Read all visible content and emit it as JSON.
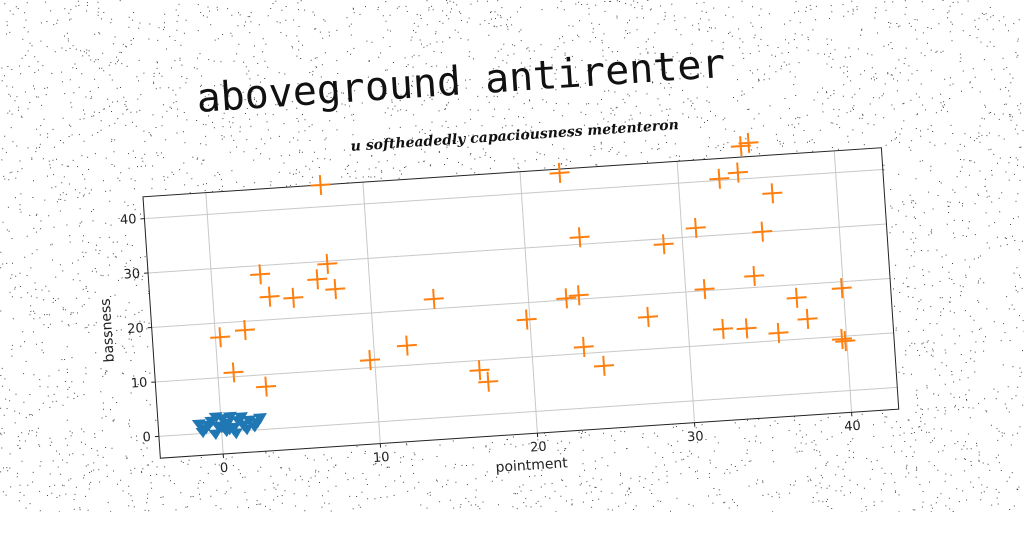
{
  "title": "aboveground antirenter",
  "subtitle": "u softheadedly capaciousness metenteron",
  "chart_data": {
    "type": "scatter",
    "xlabel": "pointment",
    "ylabel": "bassness",
    "xlim": [
      -4,
      43
    ],
    "ylim": [
      -4,
      44
    ],
    "xticks": [
      0,
      10,
      20,
      30,
      40
    ],
    "yticks": [
      0,
      10,
      20,
      30,
      40
    ],
    "grid": true,
    "series": [
      {
        "marker": "triangle-down",
        "color": "#1f77b4",
        "points": [
          [
            -1.4,
            1.8
          ],
          [
            -1.0,
            0.9
          ],
          [
            -0.6,
            2.2
          ],
          [
            -0.2,
            1.2
          ],
          [
            0.1,
            2.5
          ],
          [
            0.4,
            1.6
          ],
          [
            0.8,
            0.8
          ],
          [
            1.1,
            2.0
          ],
          [
            1.4,
            1.1
          ],
          [
            1.8,
            1.9
          ],
          [
            2.1,
            0.7
          ],
          [
            -1.2,
            0.3
          ],
          [
            -0.4,
            -0.2
          ],
          [
            0.3,
            0.2
          ],
          [
            0.9,
            -0.3
          ],
          [
            1.6,
            0.3
          ],
          [
            2.3,
            1.4
          ],
          [
            -0.8,
            1.5
          ],
          [
            0.0,
            1.0
          ],
          [
            0.6,
            2.8
          ],
          [
            1.3,
            2.6
          ],
          [
            -0.3,
            2.9
          ],
          [
            2.5,
            2.2
          ],
          [
            0.5,
            0.5
          ]
        ]
      },
      {
        "marker": "plus",
        "color": "#ff7f0e",
        "points": [
          [
            7.3,
            44.0
          ],
          [
            3.1,
            28.4
          ],
          [
            3.6,
            24.2
          ],
          [
            6.7,
            26.8
          ],
          [
            7.4,
            29.5
          ],
          [
            7.8,
            24.8
          ],
          [
            5.1,
            23.7
          ],
          [
            0.3,
            17.4
          ],
          [
            1.9,
            18.4
          ],
          [
            1.0,
            10.8
          ],
          [
            3.0,
            7.8
          ],
          [
            9.7,
            11.4
          ],
          [
            12.1,
            13.6
          ],
          [
            14.0,
            21.8
          ],
          [
            16.6,
            8.2
          ],
          [
            17.1,
            6.0
          ],
          [
            19.8,
            16.9
          ],
          [
            22.4,
            20.3
          ],
          [
            23.2,
            20.7
          ],
          [
            23.3,
            11.2
          ],
          [
            23.5,
            31.3
          ],
          [
            22.5,
            43.3
          ],
          [
            24.5,
            7.5
          ],
          [
            27.5,
            15.9
          ],
          [
            28.8,
            29.0
          ],
          [
            30.9,
            31.6
          ],
          [
            31.2,
            20.3
          ],
          [
            32.2,
            12.8
          ],
          [
            33.7,
            12.6
          ],
          [
            32.6,
            40.3
          ],
          [
            34.4,
            22.1
          ],
          [
            33.8,
            41.2
          ],
          [
            35.7,
            11.4
          ],
          [
            35.1,
            30.1
          ],
          [
            35.9,
            37.0
          ],
          [
            34.1,
            46.0
          ],
          [
            34.6,
            46.5
          ],
          [
            37.0,
            17.6
          ],
          [
            37.6,
            13.6
          ],
          [
            39.9,
            18.8
          ],
          [
            39.7,
            9.5
          ],
          [
            39.9,
            9.1
          ]
        ]
      }
    ]
  }
}
